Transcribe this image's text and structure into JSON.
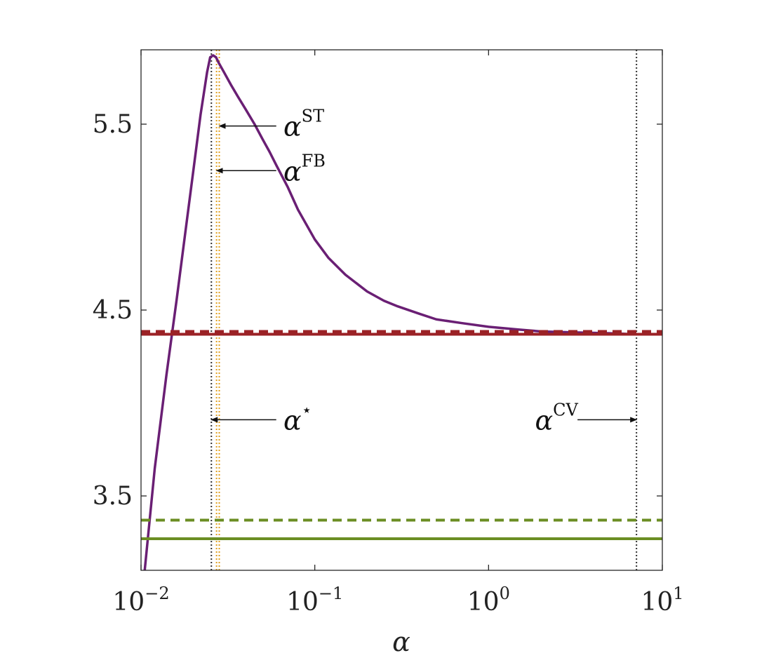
{
  "chart_data": {
    "type": "line",
    "xlabel": "α",
    "ylabel": "",
    "xscale": "log",
    "xlim": [
      0.01,
      10
    ],
    "ylim": [
      3.1,
      5.9
    ],
    "grid": false,
    "x_ticks": [
      {
        "base": "10",
        "exp": "−2",
        "value": 0.01
      },
      {
        "base": "10",
        "exp": "−1",
        "value": 0.1
      },
      {
        "base": "10",
        "exp": "0",
        "value": 1
      },
      {
        "base": "10",
        "exp": "1",
        "value": 10
      }
    ],
    "y_ticks": [
      {
        "label": "3.5",
        "value": 3.5
      },
      {
        "label": "4.5",
        "value": 4.5
      },
      {
        "label": "5.5",
        "value": 5.5
      }
    ],
    "series": [
      {
        "color": "#6a1f74",
        "style": "solid",
        "x": [
          0.0105,
          0.012,
          0.014,
          0.016,
          0.018,
          0.02,
          0.022,
          0.024,
          0.025,
          0.026,
          0.027,
          0.028,
          0.03,
          0.033,
          0.036,
          0.04,
          0.045,
          0.05,
          0.055,
          0.06,
          0.07,
          0.08,
          0.1,
          0.12,
          0.15,
          0.2,
          0.25,
          0.3,
          0.4,
          0.5,
          0.7,
          1.0,
          1.5,
          2.0,
          3.0,
          5.0,
          7.0,
          10.0
        ],
        "y": [
          3.1,
          3.65,
          4.15,
          4.55,
          4.92,
          5.25,
          5.55,
          5.78,
          5.86,
          5.87,
          5.86,
          5.83,
          5.78,
          5.71,
          5.65,
          5.58,
          5.5,
          5.42,
          5.35,
          5.28,
          5.16,
          5.04,
          4.88,
          4.78,
          4.69,
          4.6,
          4.55,
          4.52,
          4.48,
          4.45,
          4.43,
          4.41,
          4.395,
          4.385,
          4.38,
          4.375,
          4.37,
          4.37
        ]
      },
      {
        "color": "#9b2226",
        "style": "solid",
        "x": [
          0.01,
          10
        ],
        "y": [
          4.37,
          4.37
        ]
      },
      {
        "color": "#9b2226",
        "style": "dashed",
        "x": [
          0.01,
          10
        ],
        "y": [
          4.385,
          4.385
        ]
      },
      {
        "color": "#6b8e23",
        "style": "solid",
        "x": [
          0.01,
          10
        ],
        "y": [
          3.27,
          3.27
        ]
      },
      {
        "color": "#6b8e23",
        "style": "dashed",
        "x": [
          0.01,
          10
        ],
        "y": [
          3.37,
          3.37
        ]
      }
    ],
    "vlines": [
      {
        "x": 0.0254,
        "color": "#333333"
      },
      {
        "x": 0.0272,
        "color": "#e0a020"
      },
      {
        "x": 0.0282,
        "color": "#e0a020"
      },
      {
        "x": 7.1,
        "color": "#333333"
      }
    ],
    "annotations": [
      {
        "base": "α",
        "sup": "ST",
        "text_x": 0.066,
        "arrow_from_x": 0.06,
        "arrow_to_x": 0.0282,
        "y": 5.49
      },
      {
        "base": "α",
        "sup": "FB",
        "text_x": 0.066,
        "arrow_from_x": 0.06,
        "arrow_to_x": 0.0272,
        "y": 5.25
      },
      {
        "base": "α",
        "sup": "⋆",
        "text_x": 0.066,
        "arrow_from_x": 0.06,
        "arrow_to_x": 0.0254,
        "y": 3.91
      },
      {
        "base": "α",
        "sup": "CV",
        "text_x": 1.85,
        "arrow_from_x": 3.25,
        "arrow_to_x": 7.1,
        "y": 3.91
      }
    ]
  }
}
